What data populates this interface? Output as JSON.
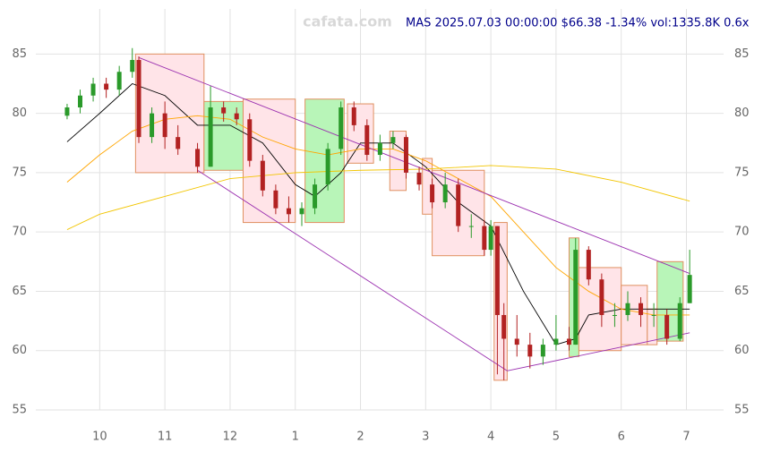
{
  "chart_data": {
    "type": "candlestick",
    "watermark": "cafata.com",
    "title": "MAS 2025.07.03 00:00:00 $66.38 -1.34% vol:1335.8K 0.6x",
    "xlim": [
      9.02,
      19.57
    ],
    "xticks": [
      10,
      11,
      12,
      {
        "value": 13,
        "label": "1"
      },
      {
        "value": 14,
        "label": "2"
      },
      {
        "value": 15,
        "label": "3"
      },
      {
        "value": 16,
        "label": "4"
      },
      {
        "value": 17,
        "label": "5"
      },
      {
        "value": 18,
        "label": "6"
      },
      {
        "value": 19,
        "label": "7"
      }
    ],
    "ylim": [
      55,
      88.8
    ],
    "yticks": [
      55,
      60,
      65,
      70,
      75,
      80,
      85
    ],
    "grid": true,
    "up_color": "#2a9a2a",
    "down_color": "#b22222",
    "x": [
      9.5,
      9.7,
      9.9,
      10.1,
      10.3,
      10.5,
      10.6,
      10.8,
      11.0,
      11.2,
      11.5,
      11.7,
      11.9,
      12.1,
      12.3,
      12.5,
      12.7,
      12.9,
      13.1,
      13.3,
      13.5,
      13.7,
      13.9,
      14.1,
      14.3,
      14.5,
      14.7,
      14.9,
      15.1,
      15.3,
      15.5,
      15.7,
      15.9,
      16.0,
      16.1,
      16.2,
      16.4,
      16.6,
      16.8,
      17.0,
      17.2,
      17.3,
      17.5,
      17.7,
      17.9,
      18.1,
      18.3,
      18.5,
      18.7,
      18.9,
      19.05
    ],
    "open": [
      79.8,
      80.5,
      81.5,
      82.5,
      82,
      83.5,
      84.5,
      78,
      80,
      78,
      77,
      75.5,
      80.5,
      80,
      79.5,
      76,
      73.5,
      72,
      71.5,
      72,
      74,
      77,
      80.5,
      79,
      76.5,
      77.5,
      78,
      75,
      74,
      72.5,
      74,
      70.5,
      70.5,
      68.5,
      70.5,
      63,
      61,
      60.5,
      59.5,
      60.5,
      61,
      60.5,
      68.5,
      66,
      63,
      63,
      64,
      63,
      63,
      61,
      64
    ],
    "high": [
      80.8,
      82,
      83,
      83,
      84,
      85.5,
      84.8,
      80.5,
      81,
      79,
      77.5,
      82.3,
      81,
      80.5,
      80,
      76.5,
      74,
      73,
      72.5,
      74.5,
      77.5,
      81,
      81,
      79.5,
      78.2,
      78.5,
      78.2,
      75.5,
      74.5,
      75,
      74.5,
      71.5,
      71,
      71,
      70.5,
      64,
      63,
      61.5,
      61,
      63,
      62,
      69.5,
      68.8,
      66.5,
      64,
      65,
      64.5,
      64,
      63.5,
      64.5,
      68.5
    ],
    "low": [
      79.5,
      80,
      81,
      81.3,
      81.5,
      83,
      77.5,
      77.5,
      77,
      76.5,
      75,
      75.5,
      79.3,
      79,
      75.5,
      73,
      71.5,
      70.8,
      70.5,
      71.5,
      73.5,
      76.5,
      78.5,
      76,
      76,
      77,
      74.5,
      73.5,
      72,
      72,
      70,
      69.5,
      68,
      68,
      58,
      57.5,
      59.5,
      58.5,
      58.8,
      60,
      60,
      60.5,
      65.5,
      62,
      62,
      62.5,
      62,
      62,
      60.5,
      60.8,
      64
    ],
    "close": [
      80.5,
      81.5,
      82.5,
      82,
      83.5,
      84.5,
      78,
      80,
      78,
      77,
      75.5,
      80.5,
      80,
      79.5,
      76,
      73.5,
      72,
      71.5,
      72,
      74,
      77,
      80.5,
      79,
      76.5,
      77.5,
      78,
      75,
      74,
      72.5,
      74,
      70.5,
      70.5,
      68.5,
      70.5,
      63,
      61,
      60.5,
      59.5,
      60.5,
      61,
      60.5,
      68.5,
      66,
      63,
      63,
      64,
      63,
      63,
      61,
      64,
      66.38
    ],
    "lines": [
      {
        "color": "#000000",
        "x": [
          9.5,
          10,
          10.5,
          11,
          11.5,
          12,
          12.5,
          13,
          13.3,
          13.7,
          14,
          14.5,
          15,
          15.5,
          16,
          16.5,
          17,
          17.3,
          17.5,
          18,
          18.5,
          19.05
        ],
        "values": [
          77.6,
          80,
          82.5,
          81.5,
          79,
          79,
          77.5,
          74,
          73,
          75,
          77.5,
          77.5,
          75.5,
          72.5,
          70.5,
          65,
          60.5,
          61,
          63,
          63.5,
          63.5,
          63.5
        ]
      },
      {
        "color": "#ffa500",
        "x": [
          9.5,
          10,
          10.5,
          11,
          11.5,
          12,
          12.5,
          13,
          13.5,
          14,
          14.5,
          15,
          15.5,
          16,
          16.5,
          17,
          17.5,
          18,
          18.5,
          19.05
        ],
        "values": [
          74.2,
          76.5,
          78.5,
          79.5,
          79.8,
          79.5,
          78,
          77,
          76.5,
          77,
          77,
          76,
          74.5,
          73,
          70,
          67,
          65,
          63.5,
          63,
          63
        ]
      },
      {
        "color": "#f2c500",
        "x": [
          9.5,
          10,
          11,
          12,
          13,
          14,
          15,
          16,
          17,
          18,
          19.05
        ],
        "values": [
          70.2,
          71.5,
          73,
          74.5,
          75,
          75.2,
          75.3,
          75.6,
          75.3,
          74.2,
          72.6
        ]
      },
      {
        "color": "#9b30b0",
        "x": [
          10.6,
          19.05
        ],
        "values": [
          84.7,
          66.5
        ]
      },
      {
        "color": "#9b30b0",
        "x": [
          11.5,
          16.25
        ],
        "values": [
          75.2,
          58.3
        ]
      },
      {
        "color": "#9b30b0",
        "x": [
          16.25,
          19.05
        ],
        "values": [
          58.3,
          61.5
        ]
      }
    ],
    "boxes": [
      {
        "x0": 10.55,
        "x1": 11.6,
        "y0": 75,
        "y1": 85,
        "color": "#ffe4e8"
      },
      {
        "x0": 11.6,
        "x1": 12.2,
        "y0": 75.2,
        "y1": 81,
        "color": "#b8f5b8"
      },
      {
        "x0": 12.2,
        "x1": 13.0,
        "y0": 70.8,
        "y1": 81.2,
        "color": "#ffe4e8"
      },
      {
        "x0": 13.15,
        "x1": 13.75,
        "y0": 70.8,
        "y1": 81.2,
        "color": "#b8f5b8"
      },
      {
        "x0": 13.8,
        "x1": 14.2,
        "y0": 75.8,
        "y1": 80.8,
        "color": "#ffe4e8"
      },
      {
        "x0": 14.45,
        "x1": 14.7,
        "y0": 73.5,
        "y1": 78.5,
        "color": "#ffe4e8"
      },
      {
        "x0": 14.95,
        "x1": 15.1,
        "y0": 71.5,
        "y1": 76.2,
        "color": "#ffe4e8"
      },
      {
        "x0": 15.1,
        "x1": 15.9,
        "y0": 68,
        "y1": 75.2,
        "color": "#ffe4e8"
      },
      {
        "x0": 16.05,
        "x1": 16.25,
        "y0": 57.5,
        "y1": 70.8,
        "color": "#ffe4e8"
      },
      {
        "x0": 17.2,
        "x1": 17.35,
        "y0": 59.5,
        "y1": 69.5,
        "color": "#b8f5b8"
      },
      {
        "x0": 17.35,
        "x1": 18.0,
        "y0": 60,
        "y1": 67,
        "color": "#ffe4e8"
      },
      {
        "x0": 18.0,
        "x1": 18.4,
        "y0": 60.5,
        "y1": 65.5,
        "color": "#ffe4e8"
      },
      {
        "x0": 18.4,
        "x1": 18.55,
        "y0": 60.5,
        "y1": 63.5,
        "color": "#ffe4e8"
      },
      {
        "x0": 18.55,
        "x1": 18.95,
        "y0": 60.8,
        "y1": 67.5,
        "color": "#b8f5b8"
      }
    ]
  }
}
